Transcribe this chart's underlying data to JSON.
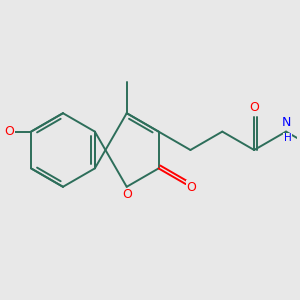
{
  "bg_color": "#e8e8e8",
  "bond_color": "#2d6e5a",
  "oxygen_color": "#ff0000",
  "nitrogen_color": "#0000ff",
  "line_width": 1.4,
  "figsize": [
    3.0,
    3.0
  ],
  "dpi": 100,
  "xlim": [
    -2.5,
    5.5
  ],
  "ylim": [
    -2.2,
    2.2
  ]
}
